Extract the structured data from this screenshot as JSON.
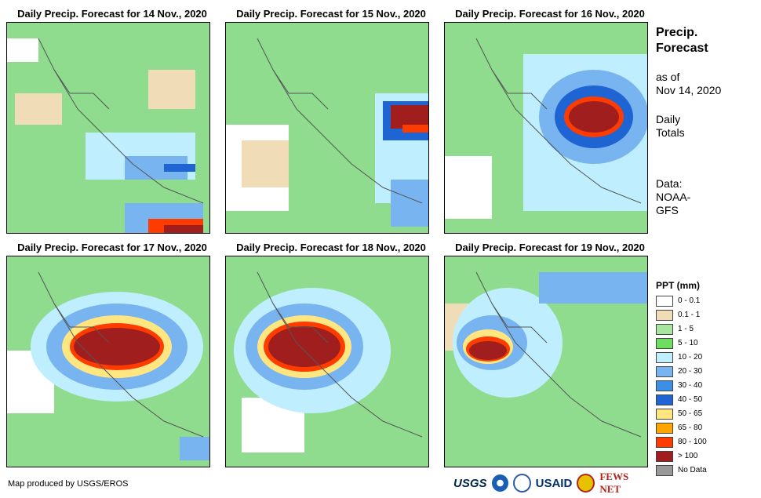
{
  "panels": [
    {
      "title": "Daily Precip. Forecast for 14 Nov., 2020",
      "date": "14 Nov."
    },
    {
      "title": "Daily Precip. Forecast for 15 Nov., 2020",
      "date": "15 Nov."
    },
    {
      "title": "Daily Precip. Forecast for 16 Nov., 2020",
      "date": "16 Nov."
    },
    {
      "title": "Daily Precip. Forecast for 17 Nov., 2020",
      "date": "17 Nov."
    },
    {
      "title": "Daily Precip. Forecast for 18 Nov., 2020",
      "date": "18 Nov."
    },
    {
      "title": "Daily Precip. Forecast for 19 Nov., 2020",
      "date": "19 Nov."
    }
  ],
  "side": {
    "title_line1": "Precip.",
    "title_line2": "Forecast",
    "asof_line1": "as of",
    "asof_line2": "Nov 14, 2020",
    "totals_line1": "Daily",
    "totals_line2": "Totals",
    "data_line1": "Data:",
    "data_line2": "NOAA-",
    "data_line3": "GFS"
  },
  "legend": {
    "title": "PPT (mm)",
    "items": [
      {
        "label": "0 - 0.1",
        "color": "#ffffff"
      },
      {
        "label": "0.1 - 1",
        "color": "#f0dcb6"
      },
      {
        "label": "1 - 5",
        "color": "#a8e6a0"
      },
      {
        "label": "5 - 10",
        "color": "#6ede5e"
      },
      {
        "label": "10 - 20",
        "color": "#bfefff"
      },
      {
        "label": "20 - 30",
        "color": "#78b4f0"
      },
      {
        "label": "30 - 40",
        "color": "#3c8ee6"
      },
      {
        "label": "40 - 50",
        "color": "#1e64d2"
      },
      {
        "label": "50 - 65",
        "color": "#ffe680"
      },
      {
        "label": "65 - 80",
        "color": "#ffa500"
      },
      {
        "label": "80 - 100",
        "color": "#ff3c00"
      },
      {
        "label": "> 100",
        "color": "#a01e1e"
      },
      {
        "label": "No Data",
        "color": "#999999"
      }
    ]
  },
  "credit": "Map produced by USGS/EROS",
  "logos": {
    "usgs": "USGS",
    "usaid": "USAID",
    "fews": "FEWS NET"
  }
}
